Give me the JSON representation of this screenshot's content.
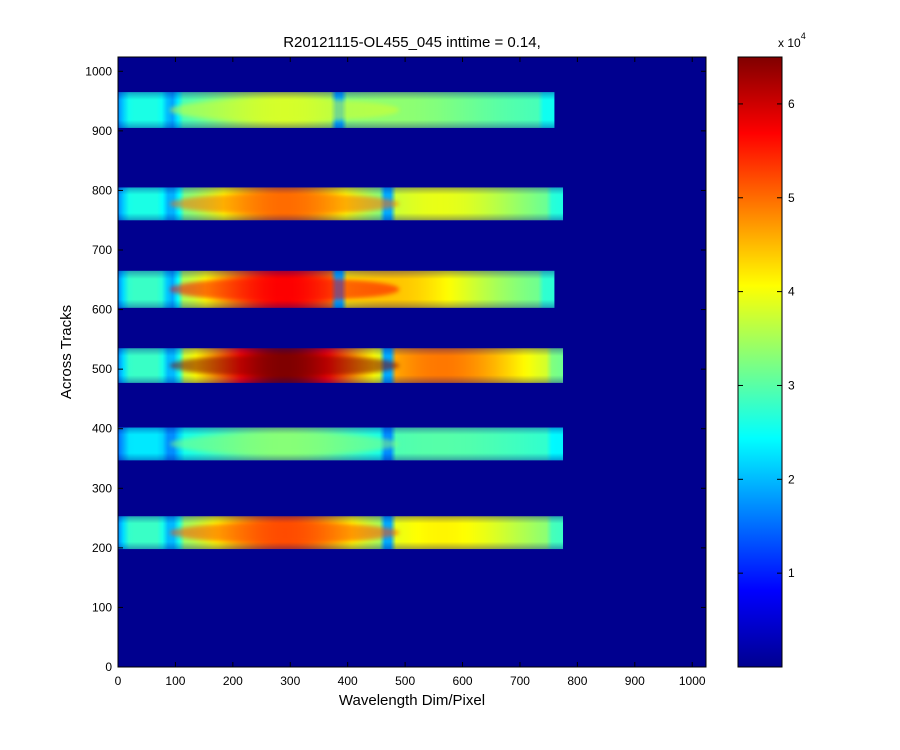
{
  "chart_data": {
    "type": "heatmap",
    "title": "R20121115-OL455_045 inttime = 0.14,",
    "xlabel": "Wavelength Dim/Pixel",
    "ylabel": "Across Tracks",
    "xlim": [
      0,
      1024
    ],
    "ylim": [
      0,
      1024
    ],
    "x_ticks": [
      0,
      100,
      200,
      300,
      400,
      500,
      600,
      700,
      800,
      900,
      1000
    ],
    "y_ticks": [
      0,
      100,
      200,
      300,
      400,
      500,
      600,
      700,
      800,
      900,
      1000
    ],
    "colormap": "jet",
    "background_color": "#00008f",
    "colorbar": {
      "range": [
        0,
        65000
      ],
      "ticks": [
        1,
        2,
        3,
        4,
        5,
        6
      ],
      "exponent_label": "x 10",
      "exponent_power": "4"
    },
    "bands": [
      {
        "y_range": [
          905,
          965
        ],
        "x_range": [
          0,
          760
        ],
        "edge_value": 17000,
        "left_value": 26000,
        "right_value": 28000,
        "peak_value": 38000,
        "notch_x": [
          375,
          395
        ]
      },
      {
        "y_range": [
          750,
          805
        ],
        "x_range": [
          0,
          775
        ],
        "edge_value": 17000,
        "left_value": 26000,
        "right_value": 26000,
        "peak_value": 50000,
        "notch_x": [
          460,
          480
        ]
      },
      {
        "y_range": [
          603,
          665
        ],
        "x_range": [
          0,
          760
        ],
        "edge_value": 17000,
        "left_value": 28000,
        "right_value": 29000,
        "peak_value": 57000,
        "notch_x": [
          375,
          393
        ]
      },
      {
        "y_range": [
          477,
          535
        ],
        "x_range": [
          0,
          775
        ],
        "edge_value": 17000,
        "left_value": 28000,
        "right_value": 30000,
        "peak_value": 65000,
        "notch_x": [
          465,
          483
        ]
      },
      {
        "y_range": [
          347,
          402
        ],
        "x_range": [
          0,
          775
        ],
        "edge_value": 15000,
        "left_value": 23000,
        "right_value": 26000,
        "peak_value": 33000,
        "notch_x": [
          460,
          480
        ]
      },
      {
        "y_range": [
          198,
          253
        ],
        "x_range": [
          0,
          775
        ],
        "edge_value": 17000,
        "left_value": 28000,
        "right_value": 28000,
        "peak_value": 52000,
        "notch_x": [
          463,
          483
        ]
      }
    ]
  }
}
